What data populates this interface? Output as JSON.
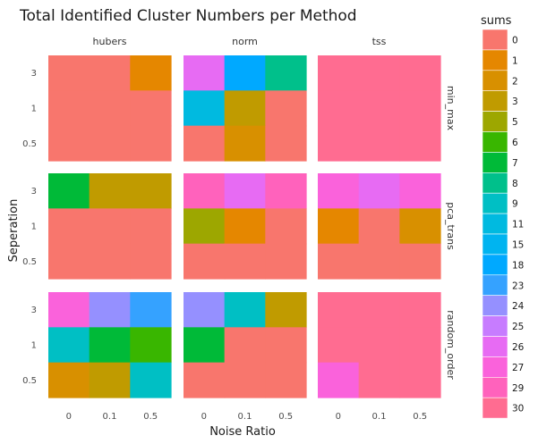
{
  "chart_data": {
    "type": "heatmap",
    "title": "Total Identified Cluster Numbers per Method",
    "xlabel": "Noise Ratio",
    "ylabel": "Seperation",
    "x_categories": [
      "0",
      "0.1",
      "0.5"
    ],
    "y_categories": [
      "0.5",
      "1",
      "3"
    ],
    "facet_columns": [
      "hubers",
      "norm",
      "tss"
    ],
    "facet_rows": [
      "min_max",
      "pca_trans",
      "random_order"
    ],
    "grid": true,
    "legend": {
      "title": "sums",
      "position": "right",
      "levels": [
        "0",
        "1",
        "2",
        "3",
        "5",
        "6",
        "7",
        "8",
        "9",
        "11",
        "15",
        "18",
        "23",
        "24",
        "25",
        "26",
        "27",
        "29",
        "30"
      ],
      "colors": [
        "#F8766D",
        "#E58700",
        "#D89000",
        "#C09B00",
        "#9DA700",
        "#39B600",
        "#00BA38",
        "#00C08B",
        "#00BFC4",
        "#00BAE0",
        "#00B4F0",
        "#00A9FF",
        "#35A2FF",
        "#9590FF",
        "#C77CFF",
        "#E76BF3",
        "#FA62DB",
        "#FF62BC",
        "#FF6C91"
      ]
    },
    "panels": [
      {
        "row": "min_max",
        "col": "hubers",
        "cells": [
          {
            "x": "0",
            "y": "3",
            "value": "0"
          },
          {
            "x": "0.1",
            "y": "3",
            "value": "0"
          },
          {
            "x": "0.5",
            "y": "3",
            "value": "1"
          },
          {
            "x": "0",
            "y": "1",
            "value": "0"
          },
          {
            "x": "0.1",
            "y": "1",
            "value": "0"
          },
          {
            "x": "0.5",
            "y": "1",
            "value": "0"
          },
          {
            "x": "0",
            "y": "0.5",
            "value": "0"
          },
          {
            "x": "0.1",
            "y": "0.5",
            "value": "0"
          },
          {
            "x": "0.5",
            "y": "0.5",
            "value": "0"
          }
        ]
      },
      {
        "row": "min_max",
        "col": "norm",
        "cells": [
          {
            "x": "0",
            "y": "3",
            "value": "26"
          },
          {
            "x": "0.1",
            "y": "3",
            "value": "18"
          },
          {
            "x": "0.5",
            "y": "3",
            "value": "8"
          },
          {
            "x": "0",
            "y": "1",
            "value": "11"
          },
          {
            "x": "0.1",
            "y": "1",
            "value": "3"
          },
          {
            "x": "0.5",
            "y": "1",
            "value": "0"
          },
          {
            "x": "0",
            "y": "0.5",
            "value": "0"
          },
          {
            "x": "0.1",
            "y": "0.5",
            "value": "2"
          },
          {
            "x": "0.5",
            "y": "0.5",
            "value": "0"
          }
        ]
      },
      {
        "row": "min_max",
        "col": "tss",
        "cells": [
          {
            "x": "0",
            "y": "3",
            "value": "30"
          },
          {
            "x": "0.1",
            "y": "3",
            "value": "30"
          },
          {
            "x": "0.5",
            "y": "3",
            "value": "30"
          },
          {
            "x": "0",
            "y": "1",
            "value": "30"
          },
          {
            "x": "0.1",
            "y": "1",
            "value": "30"
          },
          {
            "x": "0.5",
            "y": "1",
            "value": "30"
          },
          {
            "x": "0",
            "y": "0.5",
            "value": "30"
          },
          {
            "x": "0.1",
            "y": "0.5",
            "value": "30"
          },
          {
            "x": "0.5",
            "y": "0.5",
            "value": "30"
          }
        ]
      },
      {
        "row": "pca_trans",
        "col": "hubers",
        "cells": [
          {
            "x": "0",
            "y": "3",
            "value": "7"
          },
          {
            "x": "0.1",
            "y": "3",
            "value": "3"
          },
          {
            "x": "0.5",
            "y": "3",
            "value": "3"
          },
          {
            "x": "0",
            "y": "1",
            "value": "0"
          },
          {
            "x": "0.1",
            "y": "1",
            "value": "0"
          },
          {
            "x": "0.5",
            "y": "1",
            "value": "0"
          },
          {
            "x": "0",
            "y": "0.5",
            "value": "0"
          },
          {
            "x": "0.1",
            "y": "0.5",
            "value": "0"
          },
          {
            "x": "0.5",
            "y": "0.5",
            "value": "0"
          }
        ]
      },
      {
        "row": "pca_trans",
        "col": "norm",
        "cells": [
          {
            "x": "0",
            "y": "3",
            "value": "29"
          },
          {
            "x": "0.1",
            "y": "3",
            "value": "26"
          },
          {
            "x": "0.5",
            "y": "3",
            "value": "29"
          },
          {
            "x": "0",
            "y": "1",
            "value": "5"
          },
          {
            "x": "0.1",
            "y": "1",
            "value": "1"
          },
          {
            "x": "0.5",
            "y": "1",
            "value": "0"
          },
          {
            "x": "0",
            "y": "0.5",
            "value": "0"
          },
          {
            "x": "0.1",
            "y": "0.5",
            "value": "0"
          },
          {
            "x": "0.5",
            "y": "0.5",
            "value": "0"
          }
        ]
      },
      {
        "row": "pca_trans",
        "col": "tss",
        "cells": [
          {
            "x": "0",
            "y": "3",
            "value": "27"
          },
          {
            "x": "0.1",
            "y": "3",
            "value": "26"
          },
          {
            "x": "0.5",
            "y": "3",
            "value": "27"
          },
          {
            "x": "0",
            "y": "1",
            "value": "1"
          },
          {
            "x": "0.1",
            "y": "1",
            "value": "0"
          },
          {
            "x": "0.5",
            "y": "1",
            "value": "2"
          },
          {
            "x": "0",
            "y": "0.5",
            "value": "0"
          },
          {
            "x": "0.1",
            "y": "0.5",
            "value": "0"
          },
          {
            "x": "0.5",
            "y": "0.5",
            "value": "0"
          }
        ]
      },
      {
        "row": "random_order",
        "col": "hubers",
        "cells": [
          {
            "x": "0",
            "y": "3",
            "value": "27"
          },
          {
            "x": "0.1",
            "y": "3",
            "value": "24"
          },
          {
            "x": "0.5",
            "y": "3",
            "value": "23"
          },
          {
            "x": "0",
            "y": "1",
            "value": "9"
          },
          {
            "x": "0.1",
            "y": "1",
            "value": "7"
          },
          {
            "x": "0.5",
            "y": "1",
            "value": "6"
          },
          {
            "x": "0",
            "y": "0.5",
            "value": "2"
          },
          {
            "x": "0.1",
            "y": "0.5",
            "value": "3"
          },
          {
            "x": "0.5",
            "y": "0.5",
            "value": "9"
          }
        ]
      },
      {
        "row": "random_order",
        "col": "norm",
        "cells": [
          {
            "x": "0",
            "y": "3",
            "value": "24"
          },
          {
            "x": "0.1",
            "y": "3",
            "value": "9"
          },
          {
            "x": "0.5",
            "y": "3",
            "value": "3"
          },
          {
            "x": "0",
            "y": "1",
            "value": "7"
          },
          {
            "x": "0.1",
            "y": "1",
            "value": "0"
          },
          {
            "x": "0.5",
            "y": "1",
            "value": "0"
          },
          {
            "x": "0",
            "y": "0.5",
            "value": "0"
          },
          {
            "x": "0.1",
            "y": "0.5",
            "value": "0"
          },
          {
            "x": "0.5",
            "y": "0.5",
            "value": "0"
          }
        ]
      },
      {
        "row": "random_order",
        "col": "tss",
        "cells": [
          {
            "x": "0",
            "y": "3",
            "value": "30"
          },
          {
            "x": "0.1",
            "y": "3",
            "value": "30"
          },
          {
            "x": "0.5",
            "y": "3",
            "value": "30"
          },
          {
            "x": "0",
            "y": "1",
            "value": "30"
          },
          {
            "x": "0.1",
            "y": "1",
            "value": "30"
          },
          {
            "x": "0.5",
            "y": "1",
            "value": "30"
          },
          {
            "x": "0",
            "y": "0.5",
            "value": "27"
          },
          {
            "x": "0.1",
            "y": "0.5",
            "value": "30"
          },
          {
            "x": "0.5",
            "y": "0.5",
            "value": "30"
          }
        ]
      }
    ]
  }
}
